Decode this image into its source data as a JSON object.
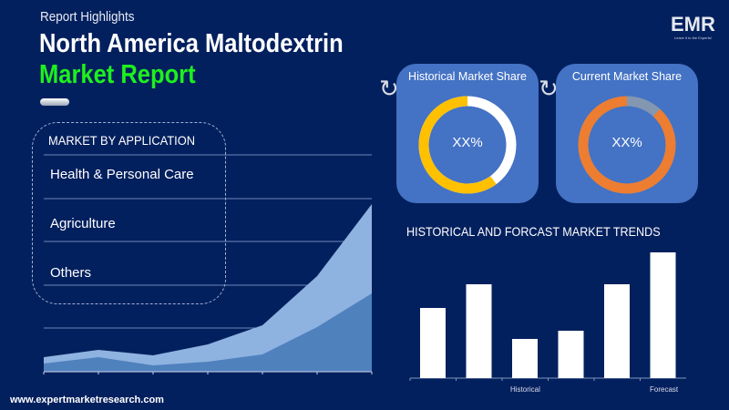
{
  "header": {
    "eyebrow": "Report Highlights",
    "title_line1": "North America Maltodextrin",
    "title_line2": "Market Report",
    "title_accent_color": "#1ef01e"
  },
  "logo": {
    "text": "EMR",
    "tagline": "Leave it to the Experts!"
  },
  "application": {
    "heading": "MARKET BY APPLICATION",
    "items": [
      "Health & Personal Care",
      "Agriculture",
      "Others"
    ]
  },
  "cards": [
    {
      "label": "Historical Market Share",
      "value": "XX%",
      "colors": [
        "#ffc000",
        "#ffffff"
      ],
      "share": 0.6
    },
    {
      "label": "Current Market Share",
      "value": "XX%",
      "colors": [
        "#ed7d31",
        "#8497b0"
      ],
      "share": 0.88
    }
  ],
  "trends": {
    "title": "HISTORICAL AND FORCAST MARKET TRENDS",
    "x_labels": [
      "Historical",
      "Forecast"
    ]
  },
  "footer": {
    "url": "www.expertmarketresearch.com"
  },
  "chart_data": [
    {
      "type": "area",
      "series": [
        {
          "values": [
            16,
            24,
            18,
            30,
            51,
            105,
            184
          ]
        },
        {
          "values": [
            9,
            16,
            7,
            11,
            19,
            49,
            86
          ]
        }
      ],
      "colors": [
        "#8fb3e0",
        "#4f81bd"
      ]
    },
    {
      "type": "bar",
      "values": [
        77,
        103,
        43,
        52,
        103,
        138
      ],
      "x_labels": [
        "Historical",
        "Forecast"
      ],
      "color": "#ffffff"
    }
  ]
}
